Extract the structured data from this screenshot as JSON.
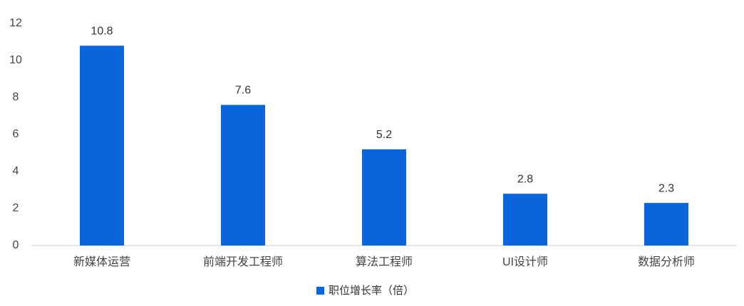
{
  "chart_data": {
    "type": "bar",
    "categories": [
      "新媒体运营",
      "前端开发工程师",
      "算法工程师",
      "UI设计师",
      "数据分析师"
    ],
    "series": [
      {
        "name": "职位增长率（倍）",
        "color": "#0a64dc",
        "values": [
          10.8,
          7.6,
          5.2,
          2.8,
          2.3
        ]
      }
    ],
    "ylim": [
      0,
      12
    ],
    "yticks": [
      0,
      2,
      4,
      6,
      8,
      10,
      12
    ],
    "grid": false,
    "legend": "bottom",
    "data_labels": true
  }
}
